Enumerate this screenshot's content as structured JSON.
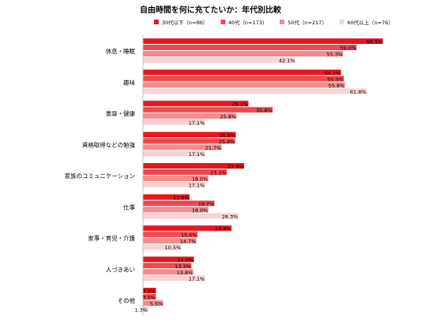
{
  "title": "自由時間を何に充てたいか：年代別比較",
  "chart_data": {
    "type": "bar",
    "orientation": "horizontal",
    "title": "自由時間を何に充てたいか：年代別比較",
    "categories": [
      "休息・睡眠",
      "趣味",
      "美容・健康",
      "資格取得などの勉強",
      "家族のコミュニケーション",
      "仕事",
      "家事・育児・介護",
      "人づきあい",
      "その他"
    ],
    "series": [
      {
        "name": "30代以下（n=86）",
        "color": "#e8141e",
        "values": [
          66.3,
          54.7,
          29.1,
          25.6,
          27.9,
          12.8,
          24.4,
          14.0,
          3.5
        ],
        "labels": [
          "66.3%",
          "54.7%",
          "29.1%",
          "25.6%",
          "27.9%",
          "12.8%",
          "24.4%",
          "14.0%",
          "3.5%"
        ]
      },
      {
        "name": "40代（n=173）",
        "color": "#ed4a4f",
        "values": [
          59.0,
          55.5,
          35.8,
          25.4,
          23.1,
          19.7,
          15.0,
          13.3,
          3.5
        ],
        "labels": [
          "59.0%",
          "55.5%",
          "35.8%",
          "25.4%",
          "23.1%",
          "19.7%",
          "15.0%",
          "13.3%",
          "3.5%"
        ]
      },
      {
        "name": "50代（n=217）",
        "color": "#f28b8c",
        "values": [
          55.3,
          55.8,
          25.8,
          21.7,
          18.0,
          18.0,
          14.7,
          13.8,
          5.5
        ],
        "labels": [
          "55.3%",
          "55.8%",
          "25.8%",
          "21.7%",
          "18.0%",
          "18.0%",
          "14.7%",
          "13.8%",
          "5.5%"
        ]
      },
      {
        "name": "60代以上（n=76）",
        "color": "#f9d2d2",
        "values": [
          42.1,
          61.8,
          17.1,
          17.1,
          17.1,
          26.3,
          10.5,
          17.1,
          1.3
        ],
        "labels": [
          "42.1%",
          "61.8%",
          "17.1%",
          "17.1%",
          "17.1%",
          "26.3%",
          "10.5%",
          "17.1%",
          "1.3%"
        ]
      }
    ],
    "xlim": [
      0,
      66.3
    ],
    "legend_position": "top",
    "grid": false
  }
}
